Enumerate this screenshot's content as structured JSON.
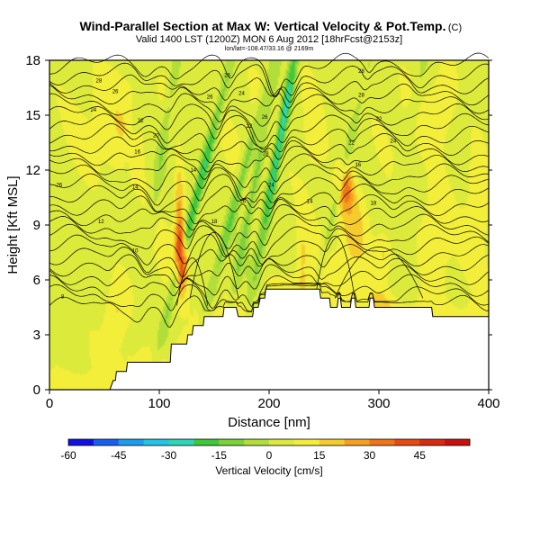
{
  "header": {
    "title": "Wind-Parallel Section at Max W: Vertical Velocity & Pot.Temp.",
    "copyright": "(C)",
    "valid_line": "Valid 1400 LST (1200Z) MON 6 Aug 2012 [18hrFcst@2153z]",
    "location_line": "lon/lat=-108.47/33.16 @ 2169m"
  },
  "chart_data": {
    "type": "heatmap",
    "xlabel": "Distance [nm]",
    "ylabel": "Height [Kft MSL]",
    "xlim": [
      0,
      400
    ],
    "ylim": [
      0,
      18
    ],
    "xticks": [
      0,
      100,
      200,
      300,
      400
    ],
    "yticks": [
      0,
      3,
      6,
      9,
      12,
      15,
      18
    ],
    "colorbar": {
      "label": "Vertical Velocity [cm/s]",
      "range": [
        -60,
        60
      ],
      "ticks": [
        -60,
        -45,
        -30,
        -15,
        0,
        15,
        30,
        45
      ],
      "colors": [
        "#1010e0",
        "#1560f0",
        "#1c9cf0",
        "#22c4e6",
        "#2cd6b6",
        "#3ec83a",
        "#7cd23a",
        "#b2de3a",
        "#dcea3c",
        "#f2ee3a",
        "#f6cc2c",
        "#f6a020",
        "#f07418",
        "#e84a12",
        "#d82a10",
        "#c81010"
      ]
    },
    "terrain": [
      [
        0,
        0
      ],
      [
        55,
        0
      ],
      [
        58,
        0.5
      ],
      [
        60,
        0.5
      ],
      [
        61,
        1
      ],
      [
        70,
        1
      ],
      [
        71,
        1.5
      ],
      [
        110,
        1.5
      ],
      [
        111,
        2.5
      ],
      [
        125,
        2.5
      ],
      [
        126,
        3
      ],
      [
        130,
        3
      ],
      [
        131,
        3.5
      ],
      [
        140,
        3.5
      ],
      [
        141,
        4
      ],
      [
        158,
        4
      ],
      [
        159,
        4.5
      ],
      [
        170,
        4.5
      ],
      [
        172,
        4
      ],
      [
        185,
        4
      ],
      [
        186,
        4.5
      ],
      [
        190,
        4.5
      ],
      [
        192,
        5
      ],
      [
        196,
        5
      ],
      [
        197,
        5.5
      ],
      [
        246,
        5.5
      ],
      [
        247,
        5
      ],
      [
        255,
        5
      ],
      [
        256,
        4.5
      ],
      [
        262,
        4.5
      ],
      [
        263,
        5
      ],
      [
        265,
        5
      ],
      [
        266,
        4.5
      ],
      [
        274,
        4.5
      ],
      [
        275,
        5
      ],
      [
        278,
        5
      ],
      [
        279,
        4.5
      ],
      [
        291,
        4.5
      ],
      [
        292,
        5
      ],
      [
        295,
        5
      ],
      [
        296,
        4.5
      ],
      [
        348,
        4.5
      ],
      [
        349,
        4
      ],
      [
        377,
        4
      ],
      [
        378,
        4
      ],
      [
        400,
        4
      ]
    ],
    "theta_contours": [
      {
        "label": "8",
        "y_ref": 5.2
      },
      {
        "label": "10",
        "y_ref": 7.7
      },
      {
        "label": "12",
        "y_ref": 9.1
      },
      {
        "label": "14",
        "y_ref": 11.0
      },
      {
        "label": "16",
        "y_ref": 12.8
      },
      {
        "label": "20",
        "y_ref": 14.0
      },
      {
        "label": "24",
        "y_ref": 15.2
      },
      {
        "label": "26",
        "y_ref": 16.0
      },
      {
        "label": "28",
        "y_ref": 16.8
      },
      {
        "label": "30",
        "y_ref": 17.6
      }
    ],
    "contour_labels": [
      {
        "text": "8",
        "x": 12,
        "y": 5.1
      },
      {
        "text": "10",
        "x": 78,
        "y": 7.6
      },
      {
        "text": "12",
        "x": 47,
        "y": 9.2
      },
      {
        "text": "14",
        "x": 78,
        "y": 11.1
      },
      {
        "text": "16",
        "x": 80,
        "y": 13.0
      },
      {
        "text": "20",
        "x": 97,
        "y": 13.9
      },
      {
        "text": "22",
        "x": 83,
        "y": 14.7
      },
      {
        "text": "24",
        "x": 40,
        "y": 15.3
      },
      {
        "text": "26",
        "x": 60,
        "y": 16.3
      },
      {
        "text": "28",
        "x": 45,
        "y": 16.9
      },
      {
        "text": "-26",
        "x": 8,
        "y": 11.2
      },
      {
        "text": "14",
        "x": 131,
        "y": 12.0
      },
      {
        "text": "18",
        "x": 150,
        "y": 9.2
      },
      {
        "text": "26",
        "x": 146,
        "y": 16.0
      },
      {
        "text": "24",
        "x": 175,
        "y": 16.2
      },
      {
        "text": "26",
        "x": 162,
        "y": 17.2
      },
      {
        "text": "16",
        "x": 176,
        "y": 10.3
      },
      {
        "text": "22",
        "x": 182,
        "y": 14.4
      },
      {
        "text": "26",
        "x": 196,
        "y": 14.9
      },
      {
        "text": "28",
        "x": 197,
        "y": 12.9
      },
      {
        "text": "24",
        "x": 202,
        "y": 11.2
      },
      {
        "text": "14",
        "x": 237,
        "y": 10.3
      },
      {
        "text": "28",
        "x": 284,
        "y": 17.4
      },
      {
        "text": "16",
        "x": 281,
        "y": 12.3
      },
      {
        "text": "22",
        "x": 275,
        "y": 13.5
      },
      {
        "text": "28",
        "x": 284,
        "y": 16.1
      },
      {
        "text": "22",
        "x": 300,
        "y": 14.8
      },
      {
        "text": "24",
        "x": 313,
        "y": 13.6
      },
      {
        "text": "18",
        "x": 295,
        "y": 10.2
      }
    ],
    "vv_features": [
      {
        "x": 120,
        "y": 7.2,
        "sx": 5,
        "sy": 1.6,
        "v": 50
      },
      {
        "x": 118,
        "y": 10.0,
        "sx": 4,
        "sy": 2.5,
        "v": 18
      },
      {
        "x": 270,
        "y": 11.0,
        "sx": 7,
        "sy": 1.3,
        "v": 25
      },
      {
        "x": 278,
        "y": 8.5,
        "sx": 12,
        "sy": 2.5,
        "v": 12
      },
      {
        "x": 60,
        "y": 4.2,
        "sx": 10,
        "sy": 2.0,
        "v": 12
      },
      {
        "x": 300,
        "y": 4.4,
        "sx": 10,
        "sy": 1.4,
        "v": 10
      },
      {
        "x": 305,
        "y": 7.5,
        "sx": 8,
        "sy": 1.2,
        "v": 14
      },
      {
        "x": 350,
        "y": 8.0,
        "sx": 15,
        "sy": 3,
        "v": 10
      },
      {
        "x": 70,
        "y": 14.5,
        "sx": 25,
        "sy": 3,
        "v": 8
      },
      {
        "x": 240,
        "y": 14.0,
        "sx": 15,
        "sy": 3,
        "v": 8
      },
      {
        "x": 390,
        "y": 11.5,
        "sx": 10,
        "sy": 3,
        "v": 9
      },
      {
        "x": 230,
        "y": 7.0,
        "sx": 6,
        "sy": 2,
        "v": 10
      },
      {
        "x": 110,
        "y": 16.0,
        "sx": 8,
        "sy": 2,
        "v": 8
      },
      {
        "x": 358,
        "y": 15.5,
        "sx": 12,
        "sy": 2,
        "v": 8
      }
    ],
    "vv_bands": [
      {
        "x0": 113,
        "y0": 5.5,
        "slope": 4.2,
        "width": 4.5,
        "v": -28
      },
      {
        "x0": 148,
        "y0": 5.5,
        "slope": 4.5,
        "width": 4.5,
        "v": -18
      },
      {
        "x0": 170,
        "y0": 6.0,
        "slope": 3.2,
        "width": 4,
        "v": -15
      },
      {
        "x0": 196,
        "y0": 9.0,
        "slope": 3.0,
        "width": 4.5,
        "v": -32
      },
      {
        "x0": 244,
        "y0": 6.0,
        "slope": 4.0,
        "width": 3.5,
        "v": -10
      },
      {
        "x0": 95,
        "y0": 10.0,
        "slope": 2.5,
        "width": 5,
        "v": -12
      },
      {
        "x0": 70,
        "y0": 12.0,
        "slope": 3.0,
        "width": 5,
        "v": -6
      },
      {
        "x0": 320,
        "y0": 12.0,
        "slope": 3.5,
        "width": 5,
        "v": -6
      }
    ]
  }
}
